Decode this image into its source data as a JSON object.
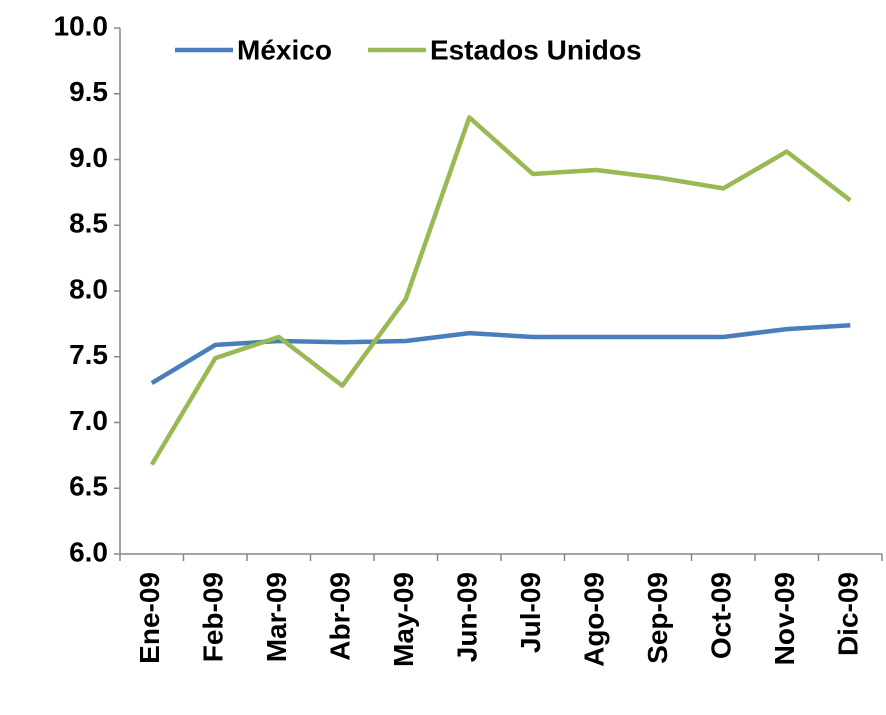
{
  "chart_data": {
    "type": "line",
    "categories": [
      "Ene-09",
      "Feb-09",
      "Mar-09",
      "Abr-09",
      "May-09",
      "Jun-09",
      "Jul-09",
      "Ago-09",
      "Sep-09",
      "Oct-09",
      "Nov-09",
      "Dic-09"
    ],
    "series": [
      {
        "name": "México",
        "color": "#4a7ebb",
        "values": [
          7.3,
          7.59,
          7.62,
          7.61,
          7.62,
          7.68,
          7.65,
          7.65,
          7.65,
          7.65,
          7.71,
          7.74
        ]
      },
      {
        "name": "Estados Unidos",
        "color": "#98b954",
        "values": [
          6.68,
          7.49,
          7.65,
          7.28,
          7.94,
          9.32,
          8.89,
          8.92,
          8.86,
          8.78,
          9.06,
          8.69
        ]
      }
    ],
    "ylim": [
      6.0,
      10.0
    ],
    "yticks": [
      {
        "value": 6.0,
        "label": "6.0"
      },
      {
        "value": 6.5,
        "label": "6.5"
      },
      {
        "value": 7.0,
        "label": "7.0"
      },
      {
        "value": 7.5,
        "label": "7.5"
      },
      {
        "value": 8.0,
        "label": "8.0"
      },
      {
        "value": 8.5,
        "label": "8.5"
      },
      {
        "value": 9.0,
        "label": "9.0"
      },
      {
        "value": 9.5,
        "label": "9.5"
      },
      {
        "value": 10.0,
        "label": "10.0"
      }
    ],
    "grid": false
  }
}
